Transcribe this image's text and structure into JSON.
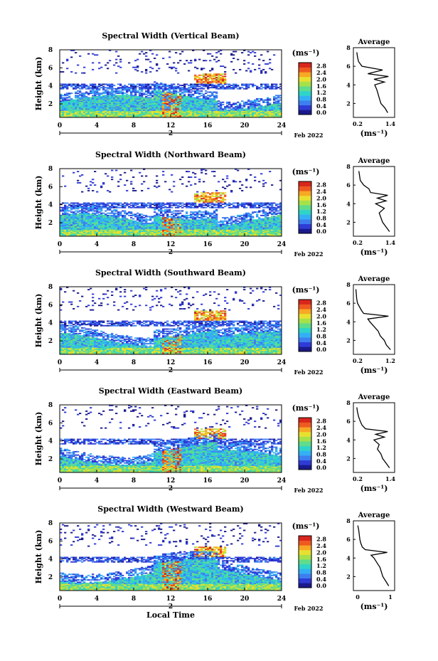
{
  "figure": {
    "date_label": "Feb 2022",
    "xlabel": "Local Time",
    "height_label": "Height (km)",
    "unit_label": "(ms⁻¹)",
    "day_label": "2"
  },
  "colorbar": {
    "ticks": [
      "0.0",
      "0.4",
      "0.8",
      "1.2",
      "1.6",
      "2.0",
      "2.4",
      "2.8"
    ],
    "colors": [
      "#1a1a8c",
      "#2f3bd6",
      "#3d7ef0",
      "#33b0f5",
      "#2fd4c8",
      "#5fdc8c",
      "#a6e14a",
      "#e8e030",
      "#f7a824",
      "#ef5a20",
      "#d9261c"
    ]
  },
  "chart_data": [
    {
      "type": "heatmap",
      "title": "Spectral Width (Vertical Beam)",
      "xlabel": "",
      "ylabel": "Height (km)",
      "xlim": [
        0,
        24
      ],
      "ylim": [
        0.5,
        8
      ],
      "xticks": [
        0,
        4,
        8,
        12,
        16,
        20,
        24
      ],
      "yticks": [
        2,
        4,
        6,
        8
      ],
      "zlim": [
        0.0,
        2.8
      ],
      "colorbar_unit": "(ms⁻¹)",
      "average_profile": {
        "title": "Average",
        "xlabel": "(ms⁻¹)",
        "xlim": [
          0.2,
          1.4
        ],
        "xticks": [
          "0.2",
          "1.4"
        ],
        "ylim": [
          0.5,
          8
        ],
        "height": [
          1.0,
          1.5,
          2.0,
          2.5,
          3.0,
          3.5,
          4.0,
          4.3,
          4.6,
          4.9,
          5.2,
          5.6,
          6.0,
          6.5,
          7.0,
          7.5
        ],
        "value": [
          1.2,
          1.12,
          1.0,
          0.96,
          0.92,
          0.88,
          0.82,
          1.1,
          0.8,
          1.22,
          0.62,
          1.05,
          0.45,
          0.35,
          0.32,
          0.3
        ]
      }
    },
    {
      "type": "heatmap",
      "title": "Spectral Width (Northward Beam)",
      "xlabel": "",
      "ylabel": "Height (km)",
      "xlim": [
        0,
        24
      ],
      "ylim": [
        0.5,
        8
      ],
      "xticks": [
        0,
        4,
        8,
        12,
        16,
        20,
        24
      ],
      "yticks": [
        2,
        4,
        6,
        8
      ],
      "zlim": [
        0.0,
        2.8
      ],
      "colorbar_unit": "(ms⁻¹)",
      "average_profile": {
        "title": "Average",
        "xlabel": "(ms⁻¹)",
        "xlim": [
          0.2,
          1.4
        ],
        "xticks": [
          "0.2",
          "1.4"
        ],
        "ylim": [
          0.5,
          8
        ],
        "height": [
          1.0,
          1.5,
          2.0,
          2.5,
          3.0,
          3.5,
          4.0,
          4.3,
          4.6,
          4.9,
          5.2,
          5.6,
          6.0,
          6.5,
          7.0,
          7.5
        ],
        "value": [
          1.25,
          1.15,
          1.05,
          1.0,
          0.95,
          1.1,
          0.85,
          1.15,
          0.9,
          1.2,
          0.7,
          0.65,
          0.5,
          0.4,
          0.38,
          0.36
        ]
      }
    },
    {
      "type": "heatmap",
      "title": "Spectral Width (Southward Beam)",
      "xlabel": "",
      "ylabel": "Height (km)",
      "xlim": [
        0,
        24
      ],
      "ylim": [
        0.5,
        8
      ],
      "xticks": [
        0,
        4,
        8,
        12,
        16,
        20,
        24
      ],
      "yticks": [
        2,
        4,
        6,
        8
      ],
      "zlim": [
        0.0,
        2.8
      ],
      "colorbar_unit": "(ms⁻¹)",
      "average_profile": {
        "title": "Average",
        "xlabel": "(ms⁻¹)",
        "xlim": [
          0.2,
          1.2
        ],
        "xticks": [
          "0.2",
          "1.2"
        ],
        "ylim": [
          0.5,
          8
        ],
        "height": [
          1.0,
          1.5,
          2.0,
          2.5,
          3.0,
          3.5,
          4.0,
          4.3,
          4.6,
          4.9,
          5.2,
          5.6,
          6.0,
          6.5,
          7.0,
          7.5
        ],
        "value": [
          1.1,
          1.0,
          0.95,
          0.85,
          0.8,
          0.7,
          0.6,
          0.55,
          1.05,
          0.45,
          0.4,
          0.35,
          0.3,
          0.28,
          0.27,
          0.26
        ]
      }
    },
    {
      "type": "heatmap",
      "title": "Spectral Width (Eastward Beam)",
      "xlabel": "",
      "ylabel": "Height (km)",
      "xlim": [
        0,
        24
      ],
      "ylim": [
        0.5,
        8
      ],
      "xticks": [
        0,
        4,
        8,
        12,
        16,
        20,
        24
      ],
      "yticks": [
        2,
        4,
        6,
        8
      ],
      "zlim": [
        0.0,
        2.8
      ],
      "colorbar_unit": "(ms⁻¹)",
      "average_profile": {
        "title": "Average",
        "xlabel": "(ms⁻¹)",
        "xlim": [
          0.2,
          1.4
        ],
        "xticks": [
          "0.2",
          "1.4"
        ],
        "ylim": [
          0.5,
          8
        ],
        "height": [
          1.0,
          1.5,
          2.0,
          2.5,
          3.0,
          3.5,
          4.0,
          4.3,
          4.6,
          4.9,
          5.2,
          5.6,
          6.0,
          6.5,
          7.0,
          7.5
        ],
        "value": [
          1.25,
          1.15,
          1.05,
          1.0,
          0.9,
          0.95,
          0.8,
          1.1,
          0.85,
          1.2,
          0.55,
          0.45,
          0.4,
          0.35,
          0.32,
          0.3
        ]
      }
    },
    {
      "type": "heatmap",
      "title": "Spectral Width (Westward Beam)",
      "xlabel": "Local Time",
      "ylabel": "Height (km)",
      "xlim": [
        0,
        24
      ],
      "ylim": [
        0.5,
        8
      ],
      "xticks": [
        0,
        4,
        8,
        12,
        16,
        20,
        24
      ],
      "yticks": [
        2,
        4,
        6,
        8
      ],
      "zlim": [
        0.0,
        2.8
      ],
      "colorbar_unit": "(ms⁻¹)",
      "average_profile": {
        "title": "Average",
        "xlabel": "(ms⁻¹)",
        "xlim": [
          0,
          1.4
        ],
        "xticks": [
          "0",
          "1"
        ],
        "ylim": [
          0.5,
          8
        ],
        "height": [
          1.0,
          1.5,
          2.0,
          2.5,
          3.0,
          3.5,
          4.0,
          4.3,
          4.6,
          4.9,
          5.2,
          5.6,
          6.0,
          6.5,
          7.0,
          7.5
        ],
        "value": [
          1.2,
          1.1,
          1.0,
          0.95,
          0.9,
          0.8,
          0.7,
          0.6,
          1.15,
          0.4,
          0.3,
          0.25,
          0.22,
          0.2,
          0.18,
          0.15
        ]
      }
    }
  ]
}
